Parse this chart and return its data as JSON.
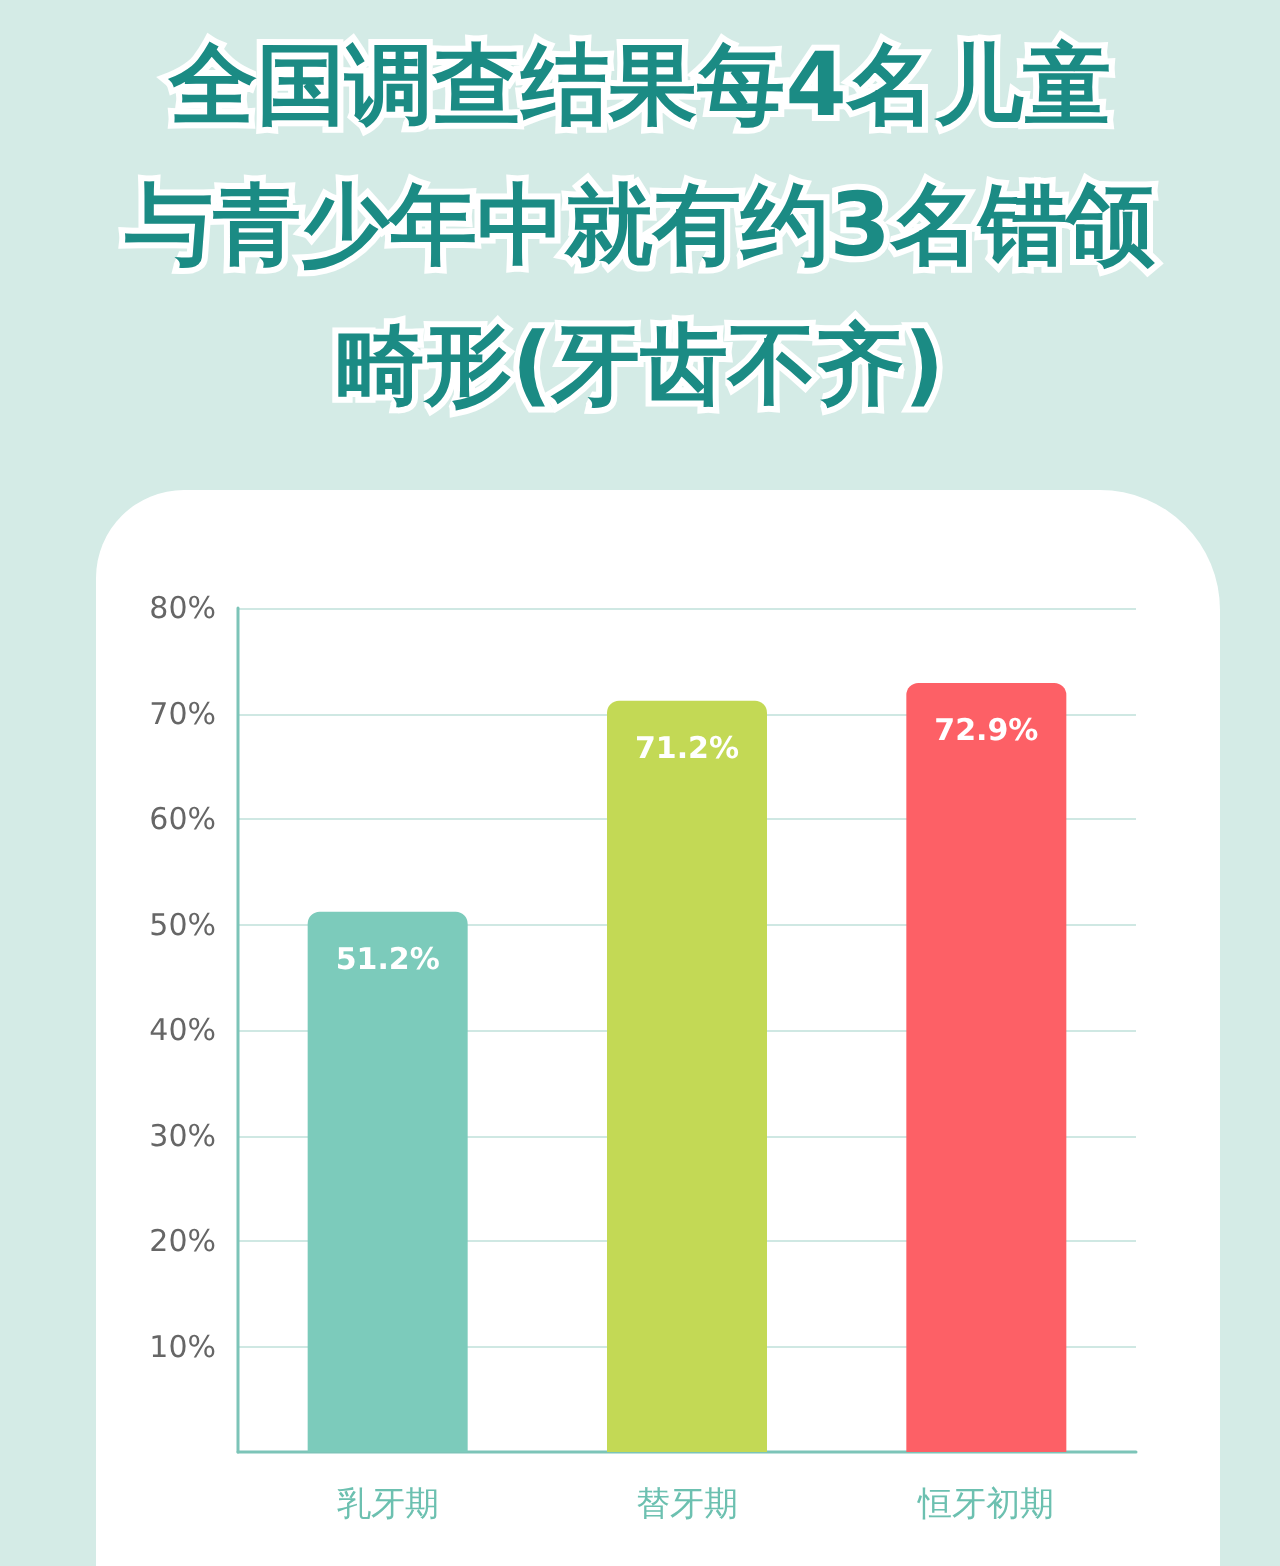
{
  "chart_data": {
    "type": "bar",
    "title": "全国调查结果每4名儿童与青少年中就有约3名错颌畸形(牙齿不齐)",
    "categories": [
      "乳牙期",
      "替牙期",
      "恒牙初期"
    ],
    "values": [
      51.2,
      71.2,
      72.9
    ],
    "colors": [
      "#7ccbbb",
      "#c3d955",
      "#fd6066"
    ],
    "value_labels": [
      "51.2%",
      "71.2%",
      "72.9%"
    ],
    "ylim": [
      0,
      80
    ],
    "yticks": [
      {
        "value": 10,
        "label": "10%"
      },
      {
        "value": 20,
        "label": "20%"
      },
      {
        "value": 30,
        "label": "30%"
      },
      {
        "value": 40,
        "label": "40%"
      },
      {
        "value": 50,
        "label": "50%"
      },
      {
        "value": 60,
        "label": "60%"
      },
      {
        "value": 70,
        "label": "70%"
      },
      {
        "value": 80,
        "label": "80%"
      }
    ],
    "grid": "y"
  }
}
